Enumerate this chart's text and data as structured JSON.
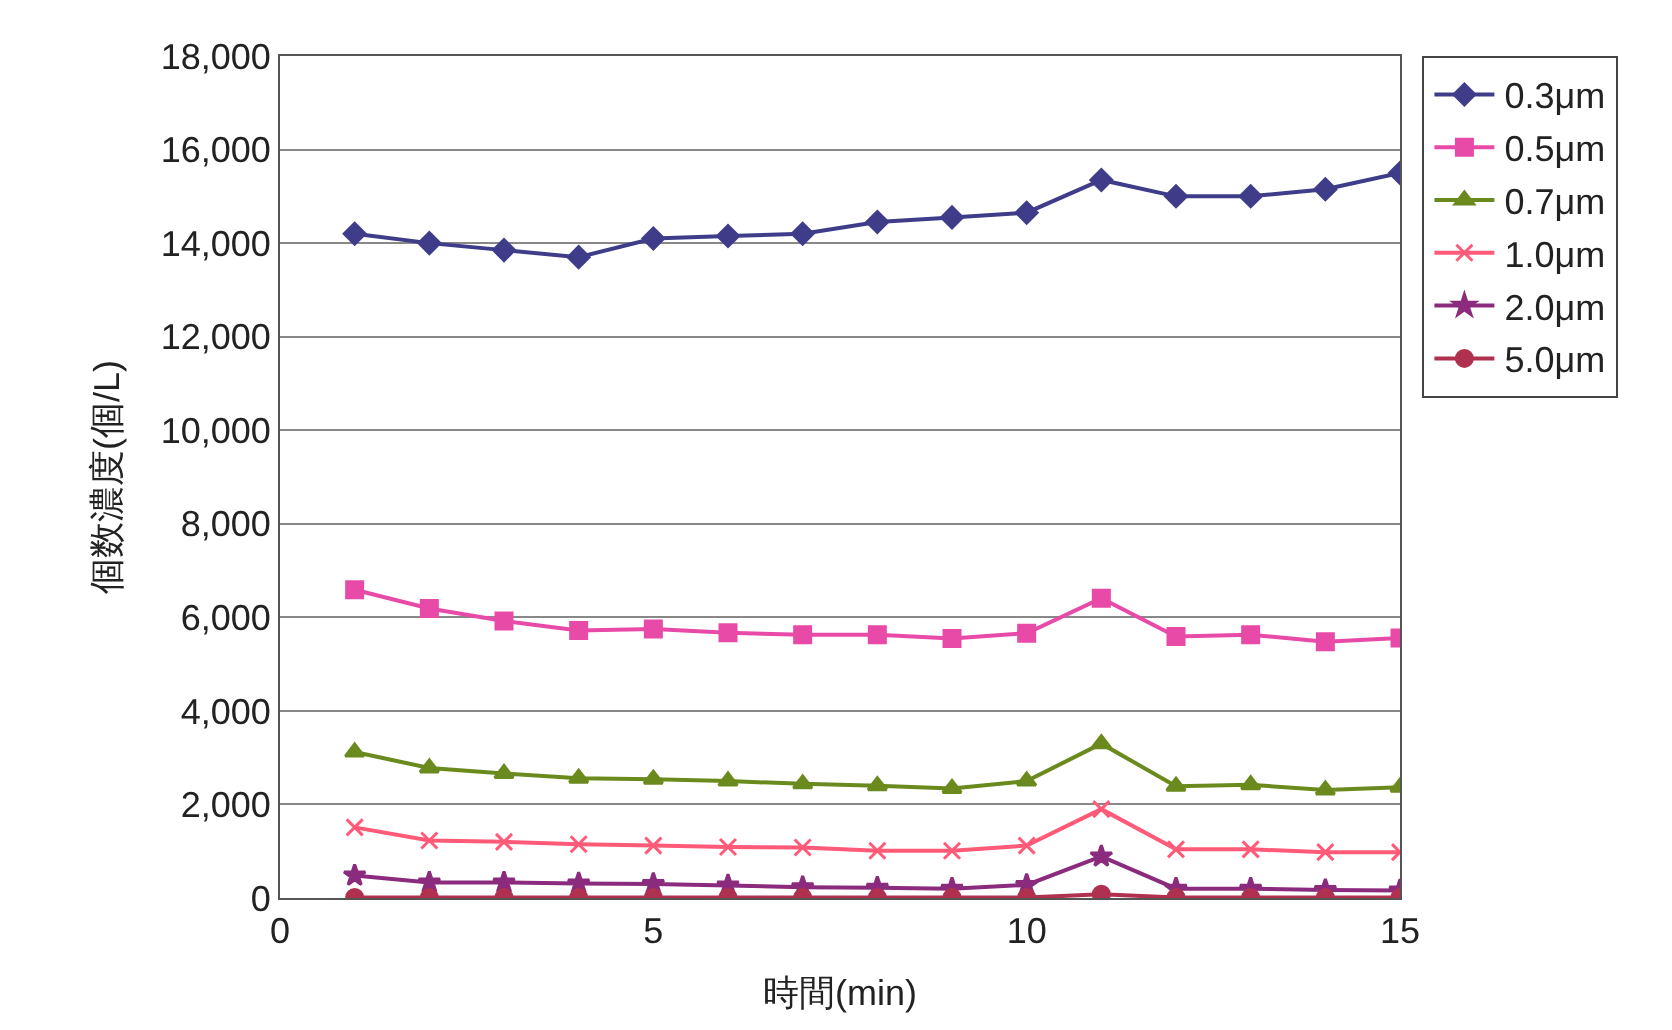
{
  "chart_data": {
    "type": "line",
    "xlabel": "時間(min)",
    "ylabel": "個数濃度(個/L)",
    "x": [
      1,
      2,
      3,
      4,
      5,
      6,
      7,
      8,
      9,
      10,
      11,
      12,
      13,
      14,
      15
    ],
    "xlim": [
      0,
      15
    ],
    "xticks": [
      0,
      5,
      10,
      15
    ],
    "ylim": [
      0,
      18000
    ],
    "yticks": [
      {
        "value": 0,
        "label": "0"
      },
      {
        "value": 2000,
        "label": "2,000"
      },
      {
        "value": 4000,
        "label": "4,000"
      },
      {
        "value": 6000,
        "label": "6,000"
      },
      {
        "value": 8000,
        "label": "8,000"
      },
      {
        "value": 10000,
        "label": "10,000"
      },
      {
        "value": 12000,
        "label": "12,000"
      },
      {
        "value": 14000,
        "label": "14,000"
      },
      {
        "value": 16000,
        "label": "16,000"
      },
      {
        "value": 18000,
        "label": "18,000"
      }
    ],
    "grid": "y",
    "legend": "top right",
    "series": [
      {
        "name": "0.3μm",
        "color": "#3f3c8a",
        "marker": "diamond",
        "values": [
          14200,
          14000,
          13850,
          13700,
          14100,
          14150,
          14200,
          14450,
          14550,
          14650,
          15350,
          15000,
          15000,
          15150,
          15500
        ]
      },
      {
        "name": "0.5μm",
        "color": "#e84aa8",
        "marker": "square",
        "values": [
          6590,
          6190,
          5920,
          5720,
          5750,
          5670,
          5630,
          5630,
          5550,
          5660,
          6410,
          5590,
          5630,
          5480,
          5560
        ]
      },
      {
        "name": "0.7μm",
        "color": "#6b8a1e",
        "marker": "triangle",
        "values": [
          3120,
          2780,
          2660,
          2560,
          2540,
          2500,
          2440,
          2400,
          2340,
          2500,
          3300,
          2390,
          2420,
          2310,
          2370
        ]
      },
      {
        "name": "1.0μm",
        "color": "#ff5a78",
        "marker": "cross",
        "values": [
          1510,
          1230,
          1200,
          1150,
          1120,
          1090,
          1080,
          1010,
          1010,
          1120,
          1900,
          1040,
          1040,
          980,
          980
        ]
      },
      {
        "name": "2.0μm",
        "color": "#8b2b7e",
        "marker": "star",
        "values": [
          480,
          330,
          330,
          310,
          300,
          270,
          230,
          220,
          200,
          280,
          890,
          200,
          200,
          170,
          160
        ]
      },
      {
        "name": "5.0μm",
        "color": "#b03050",
        "marker": "circle",
        "values": [
          10,
          10,
          10,
          10,
          10,
          10,
          10,
          10,
          10,
          10,
          80,
          10,
          10,
          10,
          10
        ]
      }
    ]
  }
}
